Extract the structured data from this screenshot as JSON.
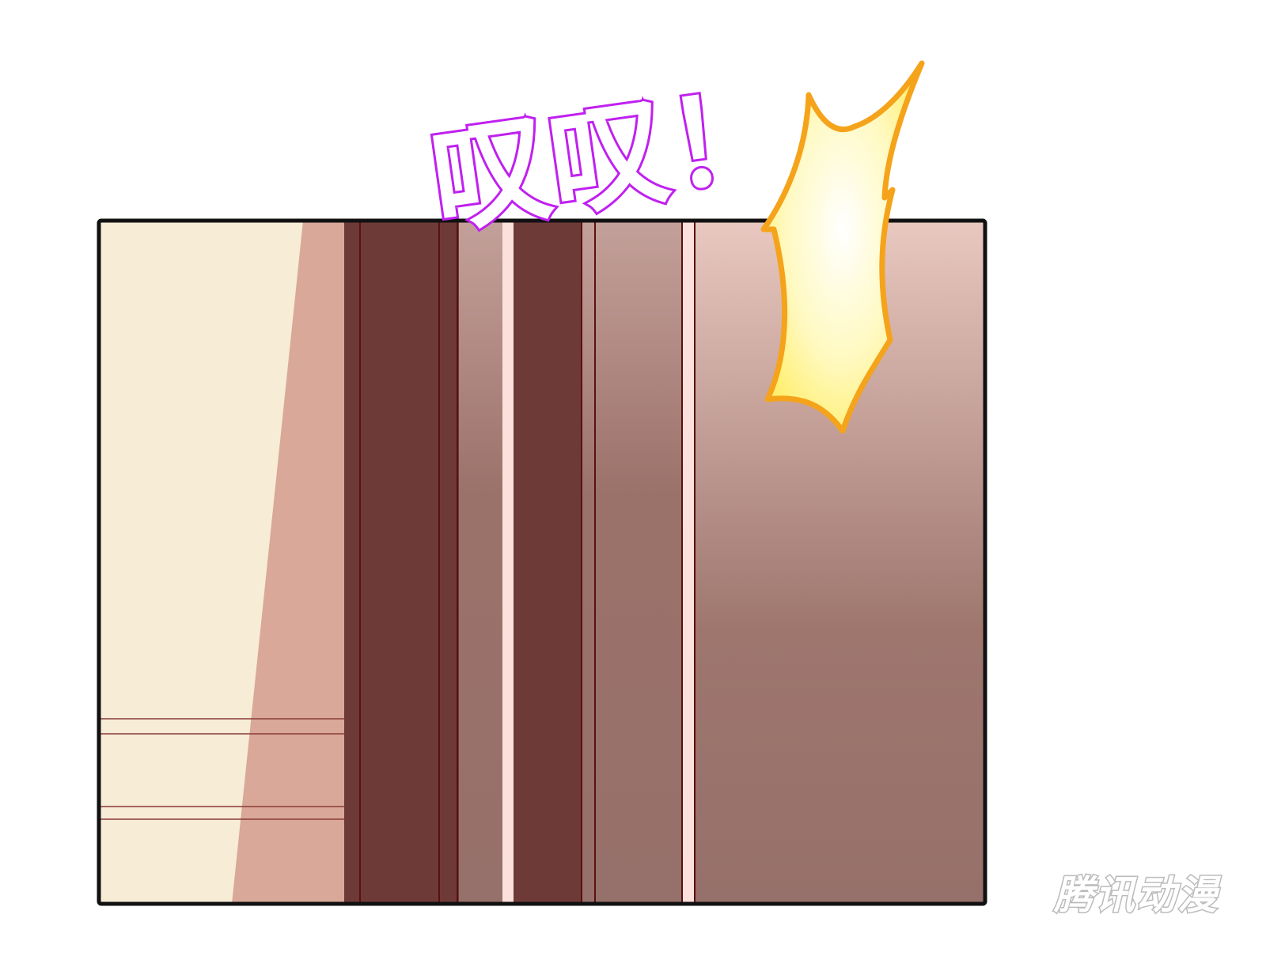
{
  "panel": {
    "sound_effect": "叹叹！",
    "colors": {
      "wall_light": "#f7ecd6",
      "wall_shadow": "#d9a898",
      "door_dark": "#6e3a38",
      "door_mid": "#9b726a",
      "burst_outline": "#f5a31a",
      "burst_fill": "#fffbd0",
      "sfx_outline_top": "#6a1cff",
      "sfx_outline_bottom": "#ff1ef0"
    }
  },
  "watermark": "腾讯动漫"
}
